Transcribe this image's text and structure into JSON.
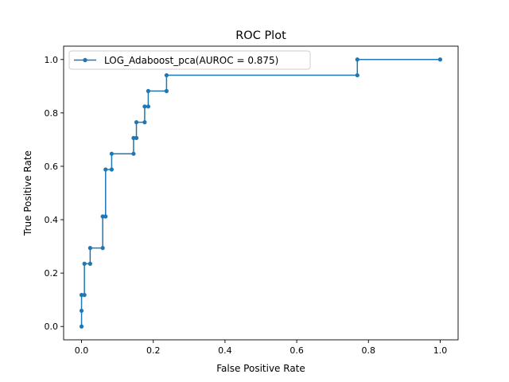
{
  "chart_data": {
    "type": "line",
    "title": "ROC Plot",
    "xlabel": "False Positive Rate",
    "ylabel": "True Positive Rate",
    "xlim": [
      -0.05,
      1.05
    ],
    "ylim": [
      -0.05,
      1.05
    ],
    "x_ticks": [
      0.0,
      0.2,
      0.4,
      0.6,
      0.8,
      1.0
    ],
    "y_ticks": [
      0.0,
      0.2,
      0.4,
      0.6,
      0.8,
      1.0
    ],
    "x_tick_labels": [
      "0.0",
      "0.2",
      "0.4",
      "0.6",
      "0.8",
      "1.0"
    ],
    "y_tick_labels": [
      "0.0",
      "0.2",
      "0.4",
      "0.6",
      "0.8",
      "1.0"
    ],
    "grid": false,
    "legend_position": "top-left",
    "series": [
      {
        "name": "LOG_Adaboost_pca(AUROC = 0.875)",
        "color": "#1f77b4",
        "marker": "point",
        "x": [
          0.0,
          0.0,
          0.0,
          0.008,
          0.008,
          0.024,
          0.024,
          0.059,
          0.059,
          0.067,
          0.067,
          0.084,
          0.084,
          0.145,
          0.145,
          0.153,
          0.153,
          0.176,
          0.176,
          0.186,
          0.186,
          0.237,
          0.237,
          0.769,
          0.769,
          1.0
        ],
        "y": [
          0.0,
          0.059,
          0.118,
          0.118,
          0.235,
          0.235,
          0.294,
          0.294,
          0.412,
          0.412,
          0.588,
          0.588,
          0.647,
          0.647,
          0.706,
          0.706,
          0.765,
          0.765,
          0.824,
          0.824,
          0.882,
          0.882,
          0.941,
          0.941,
          1.0,
          1.0
        ]
      }
    ]
  }
}
